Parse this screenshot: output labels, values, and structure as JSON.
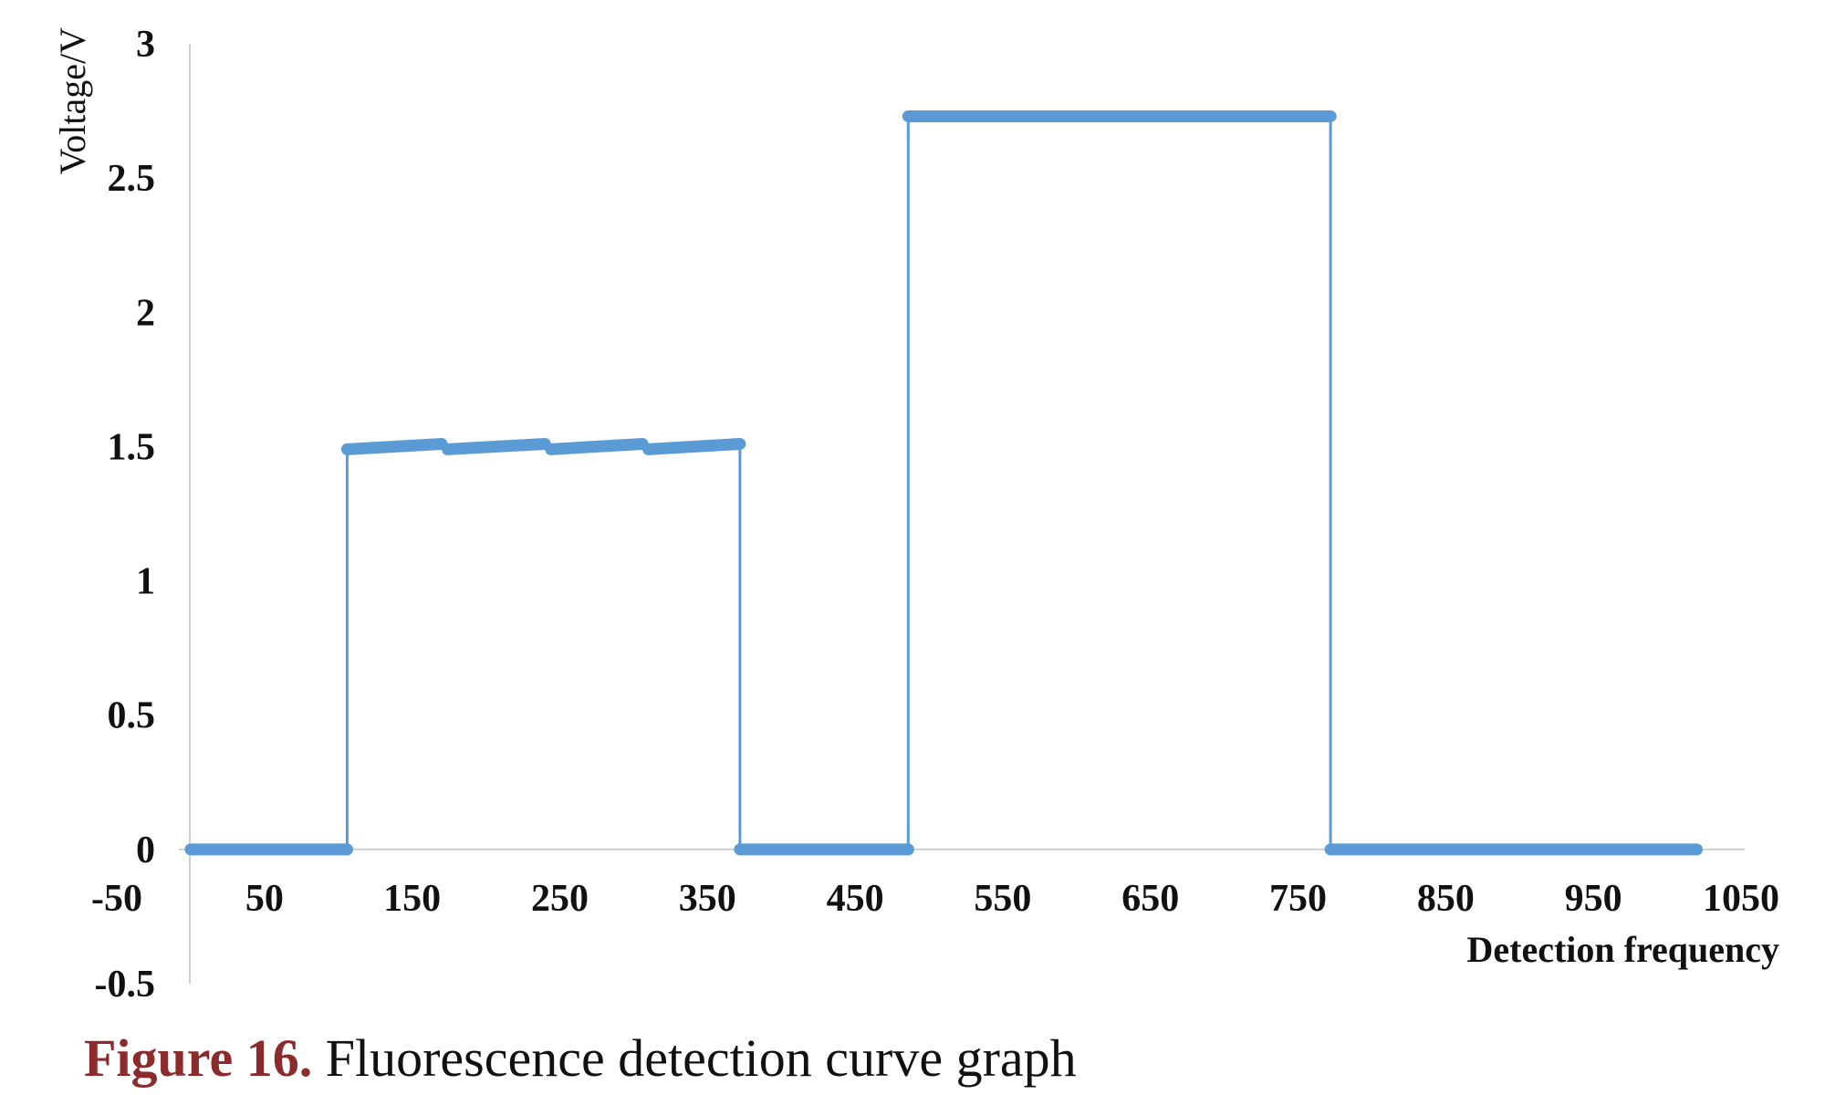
{
  "caption": {
    "label": "Figure 16.",
    "text": "Fluorescence detection curve graph"
  },
  "chart_data": {
    "type": "line",
    "title": "",
    "xlabel": "Detection frequency",
    "ylabel": "Voltage/V",
    "xlim": [
      -50,
      1050
    ],
    "ylim": [
      -0.5,
      3
    ],
    "x_ticks": [
      -50,
      50,
      150,
      250,
      350,
      450,
      550,
      650,
      750,
      850,
      950,
      1050
    ],
    "x_tick_labels": [
      "-50",
      "50",
      "150",
      "250",
      "350",
      "450",
      "550",
      "650",
      "750",
      "850",
      "950",
      "1050"
    ],
    "y_ticks": [
      -0.5,
      0,
      0.5,
      1,
      1.5,
      2,
      2.5,
      3
    ],
    "y_tick_labels": [
      "-0.5",
      "0",
      "0.5",
      "1",
      "1.5",
      "2",
      "2.5",
      "3"
    ],
    "grid": false,
    "legend": "none",
    "series_color": "#5b9bd5",
    "series": [
      {
        "x": [
          0,
          106,
          106,
          170,
          174,
          240,
          244,
          306,
          310,
          372,
          372,
          486,
          486,
          772,
          772,
          1020
        ],
        "y": [
          0,
          0,
          1.49,
          1.51,
          1.49,
          1.51,
          1.49,
          1.51,
          1.49,
          1.51,
          0,
          0,
          2.73,
          2.73,
          0,
          0
        ],
        "thick_segments": [
          [
            0,
            1
          ],
          [
            2,
            3
          ],
          [
            4,
            5
          ],
          [
            6,
            7
          ],
          [
            8,
            9
          ],
          [
            10,
            11
          ],
          [
            12,
            13
          ],
          [
            14,
            15
          ]
        ]
      }
    ]
  }
}
